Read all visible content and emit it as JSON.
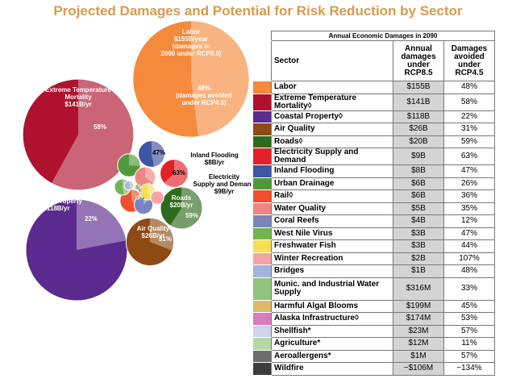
{
  "title": "Projected Damages and Potential for Risk Reduction by Sector",
  "bubble_labels": [
    {
      "lines": [
        "Labor",
        "$155B/year",
        "(damages in",
        "2090 under RCP8.5)"
      ]
    },
    {
      "lines": [
        "48%",
        "(damages avoided",
        "under RCP4.5)"
      ]
    },
    {
      "lines": [
        "Extreme Temperature",
        "Mortality",
        "$141B/yr"
      ]
    },
    {
      "lines": [
        "58%"
      ]
    },
    {
      "lines": [
        "Coastal Property",
        "$118B/yr"
      ]
    },
    {
      "lines": [
        "22%"
      ]
    },
    {
      "lines": [
        "Inland Flooding",
        "$8B/yr"
      ]
    },
    {
      "lines": [
        "47%"
      ]
    },
    {
      "lines": [
        "63%"
      ]
    },
    {
      "lines": [
        "Electricity",
        "Supply and Demand",
        "$9B/yr"
      ]
    },
    {
      "lines": [
        "Roads",
        "$20B/yr"
      ]
    },
    {
      "lines": [
        "59%"
      ]
    },
    {
      "lines": [
        "Air Quality",
        "$26B/yr"
      ]
    },
    {
      "lines": [
        "31%"
      ]
    }
  ],
  "table": {
    "caption": "Annual Economic Damages in 2090",
    "headers": [
      "Sector",
      "Annual damages under RCP8.5",
      "Damages avoided under RCP4.5"
    ],
    "rows": [
      {
        "sector": "Labor",
        "damages": "$155B",
        "avoided": "48%",
        "damage_billions": 155,
        "avoided_percent": 48,
        "color": "#f58a3c"
      },
      {
        "sector": "Extreme Temperature Mortality◊",
        "damages": "$141B",
        "avoided": "58%",
        "damage_billions": 141,
        "avoided_percent": 58,
        "color": "#b0112f"
      },
      {
        "sector": "Coastal Property◊",
        "damages": "$118B",
        "avoided": "22%",
        "damage_billions": 118,
        "avoided_percent": 22,
        "color": "#5b2a8e"
      },
      {
        "sector": "Air Quality",
        "damages": "$26B",
        "avoided": "31%",
        "damage_billions": 26,
        "avoided_percent": 31,
        "color": "#8e4a12"
      },
      {
        "sector": "Roads◊",
        "damages": "$20B",
        "avoided": "59%",
        "damage_billions": 20,
        "avoided_percent": 59,
        "color": "#2e6b1e"
      },
      {
        "sector": "Electricity Supply and Demand",
        "damages": "$9B",
        "avoided": "63%",
        "damage_billions": 9,
        "avoided_percent": 63,
        "color": "#e32127"
      },
      {
        "sector": "Inland Flooding",
        "damages": "$8B",
        "avoided": "47%",
        "damage_billions": 8,
        "avoided_percent": 47,
        "color": "#3e55a3"
      },
      {
        "sector": "Urban Drainage",
        "damages": "$6B",
        "avoided": "26%",
        "damage_billions": 6,
        "avoided_percent": 26,
        "color": "#4e9a3a"
      },
      {
        "sector": "Rail◊",
        "damages": "$6B",
        "avoided": "36%",
        "damage_billions": 6,
        "avoided_percent": 36,
        "color": "#f04e2c"
      },
      {
        "sector": "Water Quality",
        "damages": "$5B",
        "avoided": "35%",
        "damage_billions": 5,
        "avoided_percent": 35,
        "color": "#f08585"
      },
      {
        "sector": "Coral Reefs",
        "damages": "$4B",
        "avoided": "12%",
        "damage_billions": 4,
        "avoided_percent": 12,
        "color": "#7a85c0"
      },
      {
        "sector": "West Nile Virus",
        "damages": "$3B",
        "avoided": "47%",
        "damage_billions": 3,
        "avoided_percent": 47,
        "color": "#72b550"
      },
      {
        "sector": "Freshwater Fish",
        "damages": "$3B",
        "avoided": "44%",
        "damage_billions": 3,
        "avoided_percent": 44,
        "color": "#f7de52"
      },
      {
        "sector": "Winter Recreation",
        "damages": "$2B",
        "avoided": "107%",
        "damage_billions": 2,
        "avoided_percent": 107,
        "color": "#f7a3a6"
      },
      {
        "sector": "Bridges",
        "damages": "$1B",
        "avoided": "48%",
        "damage_billions": 1,
        "avoided_percent": 48,
        "color": "#a5b3dc"
      },
      {
        "sector": "Munic. and Industrial Water Supply",
        "damages": "$316M",
        "avoided": "33%",
        "damage_billions": 0.316,
        "avoided_percent": 33,
        "color": "#92c47c"
      },
      {
        "sector": "Harmful Algal Blooms",
        "damages": "$199M",
        "avoided": "45%",
        "damage_billions": 0.199,
        "avoided_percent": 45,
        "color": "#e0b86a"
      },
      {
        "sector": "Alaska Infrastructure◊",
        "damages": "$174M",
        "avoided": "53%",
        "damage_billions": 0.174,
        "avoided_percent": 53,
        "color": "#d77cc0"
      },
      {
        "sector": "Shellfish*",
        "damages": "$23M",
        "avoided": "57%",
        "damage_billions": 0.023,
        "avoided_percent": 57,
        "color": "#d0d3eb"
      },
      {
        "sector": "Agriculture*",
        "damages": "$12M",
        "avoided": "11%",
        "damage_billions": 0.012,
        "avoided_percent": 11,
        "color": "#b7d8a5"
      },
      {
        "sector": "Aeroallergens*",
        "damages": "$1M",
        "avoided": "57%",
        "damage_billions": 0.001,
        "avoided_percent": 57,
        "color": "#6e6e6e"
      },
      {
        "sector": "Wildfire",
        "damages": "−$106M",
        "avoided": "−134%",
        "damage_billions": -0.106,
        "avoided_percent": -134,
        "color": "#3c3c3c"
      }
    ]
  }
}
